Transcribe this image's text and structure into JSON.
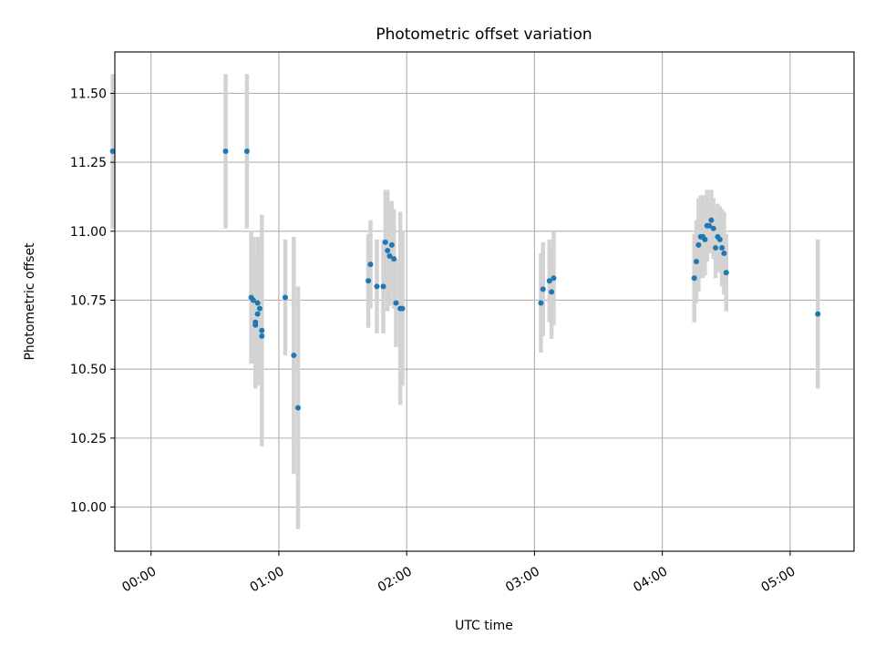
{
  "chart_data": {
    "type": "scatter",
    "title": "Photometric offset variation",
    "xlabel": "UTC time",
    "ylabel": "Photometric offset",
    "xlim": [
      "-00:17",
      "05:30"
    ],
    "ylim": [
      9.84,
      11.65
    ],
    "grid": true,
    "x_ticks": [
      "00:00",
      "01:00",
      "02:00",
      "03:00",
      "04:00",
      "05:00"
    ],
    "y_ticks": [
      "10.00",
      "10.25",
      "10.50",
      "10.75",
      "11.00",
      "11.25",
      "11.50"
    ],
    "colors": {
      "points": "#1f77b4",
      "error_bars": "#d3d3d3",
      "grid": "#b0b0b0"
    },
    "series": [
      {
        "x": [
          "-00:18",
          "00:35",
          "00:45",
          "00:47",
          "00:48",
          "00:49",
          "00:49",
          "00:50",
          "00:50",
          "00:51",
          "00:52",
          "00:52",
          "01:03",
          "01:07",
          "01:09",
          "01:42",
          "01:43",
          "01:46",
          "01:49",
          "01:50",
          "01:51",
          "01:52",
          "01:53",
          "01:54",
          "01:55",
          "01:57",
          "01:58",
          "03:03",
          "03:04",
          "03:07",
          "03:08",
          "03:09",
          "04:15",
          "04:16",
          "04:17",
          "04:18",
          "04:19",
          "04:20",
          "04:21",
          "04:22",
          "04:23",
          "04:24",
          "04:25",
          "04:26",
          "04:27",
          "04:28",
          "04:29",
          "04:30",
          "05:13"
        ],
        "y": [
          11.29,
          11.29,
          11.29,
          10.76,
          10.75,
          10.67,
          10.66,
          10.7,
          10.74,
          10.72,
          10.64,
          10.62,
          10.76,
          10.55,
          10.36,
          10.82,
          10.88,
          10.8,
          10.8,
          10.96,
          10.93,
          10.91,
          10.95,
          10.9,
          10.74,
          10.72,
          10.72,
          10.74,
          10.79,
          10.82,
          10.78,
          10.83,
          10.83,
          10.89,
          10.95,
          10.98,
          10.98,
          10.97,
          11.02,
          11.02,
          11.04,
          11.01,
          10.94,
          10.98,
          10.97,
          10.94,
          10.92,
          10.85,
          10.7
        ],
        "yerr": [
          0.28,
          0.28,
          0.28,
          0.24,
          0.23,
          0.24,
          0.22,
          0.26,
          0.24,
          0.25,
          0.42,
          0.4,
          0.21,
          0.43,
          0.44,
          0.17,
          0.16,
          0.17,
          0.17,
          0.19,
          0.22,
          0.18,
          0.16,
          0.18,
          0.16,
          0.35,
          0.28,
          0.18,
          0.17,
          0.15,
          0.17,
          0.17,
          0.16,
          0.15,
          0.17,
          0.15,
          0.15,
          0.13,
          0.13,
          0.1,
          0.11,
          0.11,
          0.11,
          0.12,
          0.12,
          0.14,
          0.15,
          0.14,
          0.27
        ]
      }
    ]
  }
}
